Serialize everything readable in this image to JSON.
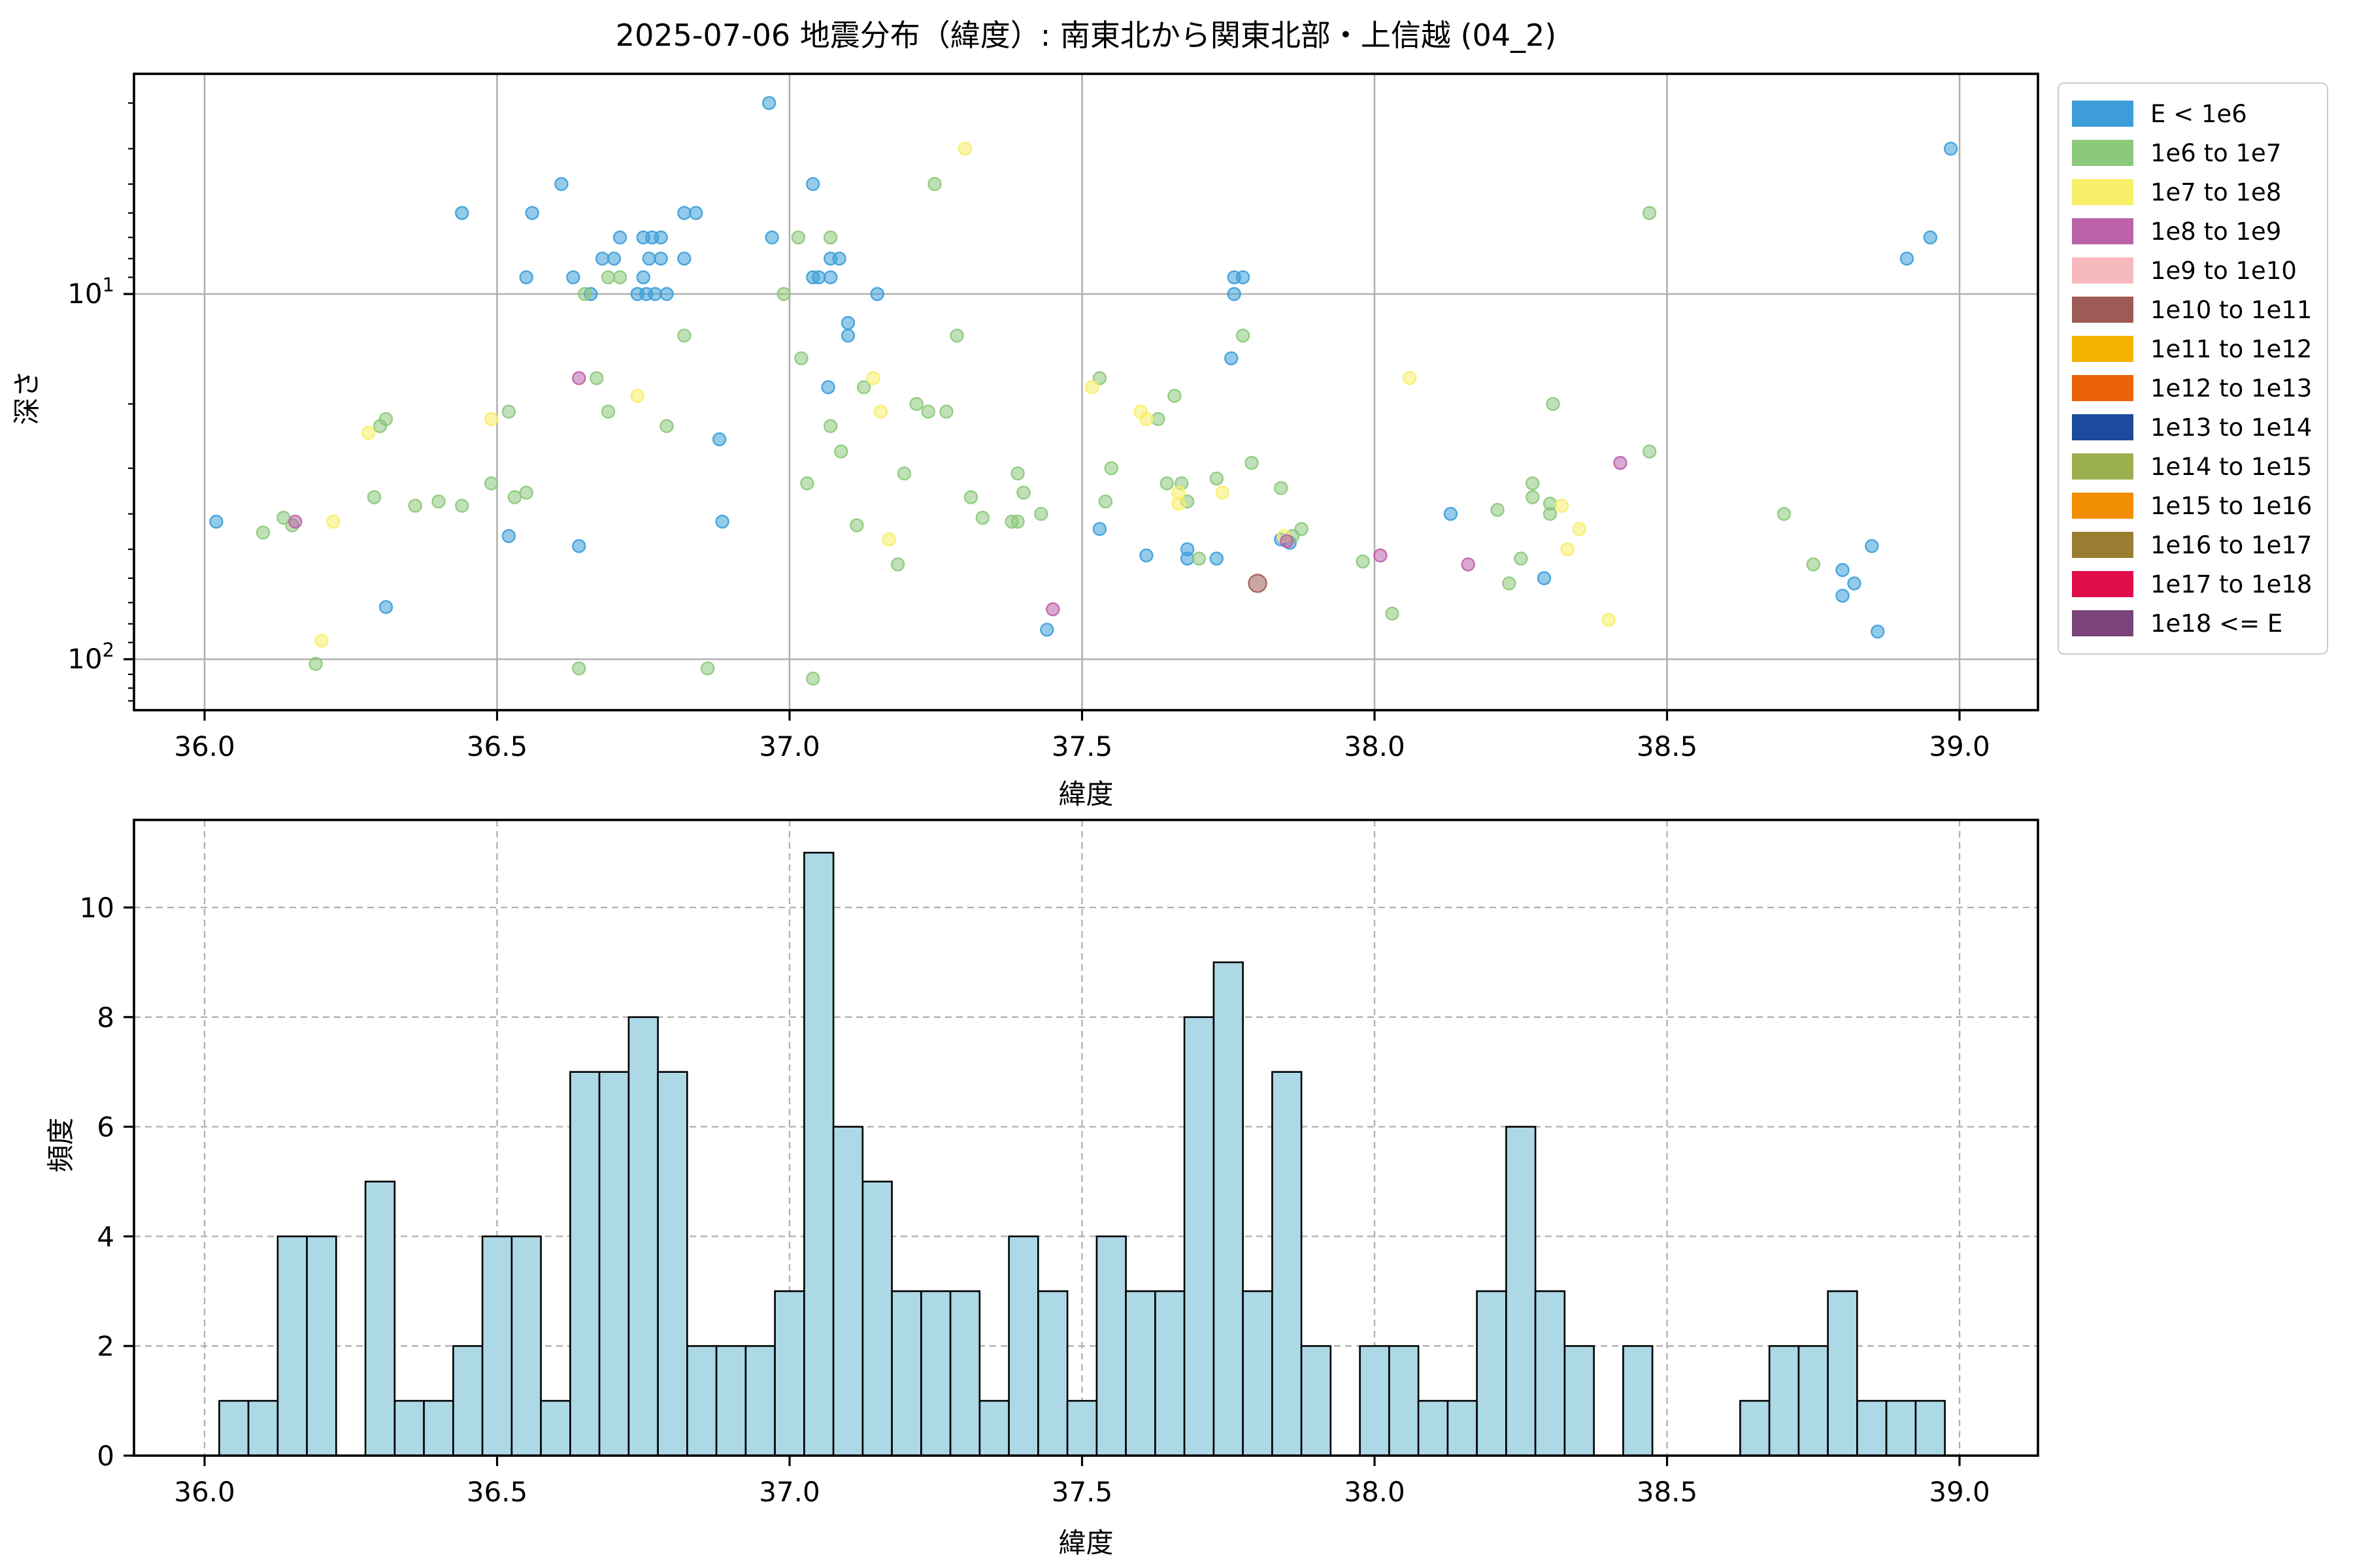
{
  "title": "2025-07-06 地震分布（緯度）: 南東北から関東北部・上信越 (04_2)",
  "style": {
    "background": "#ffffff",
    "grid_color": "#b0b0b0",
    "spine_color": "#000000",
    "tick_label_color": "#000000"
  },
  "legend": {
    "items": [
      {
        "label": "E < 1e6",
        "color": "#3D9ED9"
      },
      {
        "label": "1e6 to 1e7",
        "color": "#8CC97B"
      },
      {
        "label": "1e7 to 1e8",
        "color": "#F7EF67"
      },
      {
        "label": "1e8 to 1e9",
        "color": "#BC62AB"
      },
      {
        "label": "1e9 to 1e10",
        "color": "#F6B9BE"
      },
      {
        "label": "1e10 to 1e11",
        "color": "#9E5B55"
      },
      {
        "label": "1e11 to 1e12",
        "color": "#F5B301"
      },
      {
        "label": "1e12 to 1e13",
        "color": "#EA6309"
      },
      {
        "label": "1e13 to 1e14",
        "color": "#1C4A9C"
      },
      {
        "label": "1e14 to 1e15",
        "color": "#9CAF4E"
      },
      {
        "label": "1e15 to 1e16",
        "color": "#F28E01"
      },
      {
        "label": "1e16 to 1e17",
        "color": "#9A7D31"
      },
      {
        "label": "1e17 to 1e18",
        "color": "#DF0D49"
      },
      {
        "label": "1e18 <= E",
        "color": "#7A4379"
      }
    ]
  },
  "chart_data": [
    {
      "type": "scatter",
      "title": "2025-07-06 地震分布（緯度）: 南東北から関東北部・上信越 (04_2)",
      "xlabel": "緯度",
      "ylabel": "深さ",
      "x_ticks": [
        36.0,
        36.5,
        37.0,
        37.5,
        38.0,
        38.5,
        39.0
      ],
      "x_range": [
        35.88,
        39.13
      ],
      "y_scale": "log-inverted",
      "y_major_ticks": [
        10,
        100
      ],
      "y_minor_ticks": [
        3,
        4,
        5,
        6,
        7,
        8,
        9,
        20,
        30,
        40,
        50,
        60,
        70,
        80,
        90,
        110,
        120,
        130
      ],
      "y_range_depth": [
        2.5,
        138
      ],
      "grid": "solid",
      "legend_position": "outside-right",
      "points_format": "[latitude, depth_km, legend_category_index, big_marker_flag]",
      "points": [
        [
          36.02,
          42,
          0
        ],
        [
          36.31,
          72,
          0
        ],
        [
          36.44,
          6,
          0
        ],
        [
          36.52,
          46,
          0
        ],
        [
          36.55,
          9,
          0
        ],
        [
          36.56,
          6,
          0
        ],
        [
          36.61,
          5,
          0
        ],
        [
          36.63,
          9,
          0
        ],
        [
          36.64,
          49,
          0
        ],
        [
          36.66,
          10,
          0
        ],
        [
          36.68,
          8,
          0
        ],
        [
          36.7,
          8,
          0
        ],
        [
          36.71,
          7,
          0
        ],
        [
          36.74,
          10,
          0
        ],
        [
          36.75,
          7,
          0
        ],
        [
          36.75,
          9,
          0
        ],
        [
          36.755,
          10,
          0
        ],
        [
          36.76,
          8,
          0
        ],
        [
          36.765,
          7,
          0
        ],
        [
          36.77,
          10,
          0
        ],
        [
          36.78,
          7,
          0
        ],
        [
          36.78,
          8,
          0
        ],
        [
          36.79,
          10,
          0
        ],
        [
          36.82,
          6,
          0
        ],
        [
          36.82,
          8,
          0
        ],
        [
          36.84,
          6,
          0
        ],
        [
          36.88,
          25,
          0
        ],
        [
          36.885,
          42,
          0
        ],
        [
          36.965,
          3,
          0
        ],
        [
          36.97,
          7,
          0
        ],
        [
          37.04,
          5,
          0
        ],
        [
          37.04,
          9,
          0
        ],
        [
          37.05,
          9,
          0
        ],
        [
          37.066,
          18,
          0
        ],
        [
          37.07,
          8,
          0
        ],
        [
          37.07,
          9,
          0
        ],
        [
          37.085,
          8,
          0
        ],
        [
          37.1,
          12,
          0
        ],
        [
          37.1,
          13,
          0
        ],
        [
          37.15,
          10,
          0
        ],
        [
          37.44,
          83,
          0
        ],
        [
          37.53,
          44,
          0
        ],
        [
          37.61,
          52,
          0
        ],
        [
          37.68,
          50,
          0
        ],
        [
          37.68,
          53,
          0
        ],
        [
          37.73,
          53,
          0
        ],
        [
          37.755,
          15,
          0
        ],
        [
          37.76,
          9,
          0
        ],
        [
          37.775,
          9,
          0
        ],
        [
          37.76,
          10,
          0
        ],
        [
          37.84,
          47,
          0
        ],
        [
          37.855,
          48,
          0
        ],
        [
          38.13,
          40,
          0
        ],
        [
          38.29,
          60,
          0
        ],
        [
          38.8,
          57,
          0
        ],
        [
          38.8,
          67,
          0
        ],
        [
          38.82,
          62,
          0
        ],
        [
          38.85,
          49,
          0
        ],
        [
          38.86,
          84,
          0
        ],
        [
          38.91,
          8,
          0
        ],
        [
          38.95,
          7,
          0
        ],
        [
          38.985,
          4,
          0
        ],
        [
          36.1,
          45,
          1
        ],
        [
          36.135,
          41,
          1
        ],
        [
          36.15,
          43,
          1
        ],
        [
          36.19,
          103,
          1
        ],
        [
          36.29,
          36,
          1
        ],
        [
          36.3,
          23,
          1
        ],
        [
          36.31,
          22,
          1
        ],
        [
          36.36,
          38,
          1
        ],
        [
          36.4,
          37,
          1
        ],
        [
          36.44,
          38,
          1
        ],
        [
          36.49,
          33,
          1
        ],
        [
          36.52,
          21,
          1
        ],
        [
          36.53,
          36,
          1
        ],
        [
          36.55,
          35,
          1
        ],
        [
          36.64,
          106,
          1
        ],
        [
          36.65,
          10,
          1
        ],
        [
          36.67,
          17,
          1
        ],
        [
          36.69,
          9,
          1
        ],
        [
          36.69,
          21,
          1
        ],
        [
          36.71,
          9,
          1
        ],
        [
          36.79,
          23,
          1
        ],
        [
          36.82,
          13,
          1
        ],
        [
          36.86,
          106,
          1
        ],
        [
          36.99,
          10,
          1
        ],
        [
          37.015,
          7,
          1
        ],
        [
          37.02,
          15,
          1
        ],
        [
          37.03,
          33,
          1
        ],
        [
          37.04,
          113,
          1
        ],
        [
          37.07,
          7,
          1
        ],
        [
          37.07,
          23,
          1
        ],
        [
          37.088,
          27,
          1
        ],
        [
          37.115,
          43,
          1
        ],
        [
          37.127,
          18,
          1
        ],
        [
          37.185,
          55,
          1
        ],
        [
          37.196,
          31,
          1
        ],
        [
          37.217,
          20,
          1
        ],
        [
          37.237,
          21,
          1
        ],
        [
          37.248,
          5,
          1
        ],
        [
          37.268,
          21,
          1
        ],
        [
          37.286,
          13,
          1
        ],
        [
          37.31,
          36,
          1
        ],
        [
          37.33,
          41,
          1
        ],
        [
          37.38,
          42,
          1
        ],
        [
          37.39,
          42,
          1
        ],
        [
          37.39,
          31,
          1
        ],
        [
          37.4,
          35,
          1
        ],
        [
          37.43,
          40,
          1
        ],
        [
          37.53,
          17,
          1
        ],
        [
          37.54,
          37,
          1
        ],
        [
          37.55,
          30,
          1
        ],
        [
          37.63,
          22,
          1
        ],
        [
          37.645,
          33,
          1
        ],
        [
          37.658,
          19,
          1
        ],
        [
          37.67,
          33,
          1
        ],
        [
          37.68,
          37,
          1
        ],
        [
          37.7,
          53,
          1
        ],
        [
          37.73,
          32,
          1
        ],
        [
          37.775,
          13,
          1
        ],
        [
          37.79,
          29,
          1
        ],
        [
          37.84,
          34,
          1
        ],
        [
          37.86,
          46,
          1
        ],
        [
          37.875,
          44,
          1
        ],
        [
          37.98,
          54,
          1
        ],
        [
          38.03,
          75,
          1
        ],
        [
          38.21,
          39,
          1
        ],
        [
          38.23,
          62,
          1
        ],
        [
          38.25,
          53,
          1
        ],
        [
          38.27,
          33,
          1
        ],
        [
          38.27,
          36,
          1
        ],
        [
          38.3,
          37.5,
          1
        ],
        [
          38.3,
          40,
          1
        ],
        [
          38.305,
          20,
          1
        ],
        [
          38.47,
          27,
          1
        ],
        [
          38.47,
          6,
          1
        ],
        [
          38.7,
          40,
          1
        ],
        [
          38.75,
          55,
          1
        ],
        [
          36.2,
          89,
          2
        ],
        [
          36.22,
          42,
          2
        ],
        [
          36.28,
          24,
          2
        ],
        [
          36.49,
          22,
          2
        ],
        [
          36.74,
          19,
          2
        ],
        [
          37.143,
          17,
          2
        ],
        [
          37.156,
          21,
          2
        ],
        [
          37.17,
          47,
          2
        ],
        [
          37.3,
          4,
          2
        ],
        [
          37.517,
          18,
          2
        ],
        [
          37.6,
          21,
          2
        ],
        [
          37.61,
          22,
          2
        ],
        [
          37.665,
          35,
          2
        ],
        [
          37.665,
          37.5,
          2
        ],
        [
          37.74,
          35,
          2
        ],
        [
          37.845,
          46,
          2
        ],
        [
          38.06,
          17,
          2
        ],
        [
          38.32,
          38,
          2
        ],
        [
          38.33,
          50,
          2
        ],
        [
          38.35,
          44,
          2
        ],
        [
          38.4,
          78,
          2
        ],
        [
          36.155,
          42,
          3
        ],
        [
          36.64,
          17,
          3
        ],
        [
          37.45,
          73,
          3
        ],
        [
          37.85,
          47.5,
          3
        ],
        [
          38.01,
          52,
          3
        ],
        [
          38.16,
          55,
          3
        ],
        [
          38.42,
          29,
          3
        ],
        [
          37.8,
          62,
          5,
          1
        ]
      ]
    },
    {
      "type": "bar",
      "subtype": "histogram",
      "xlabel": "緯度",
      "ylabel": "頻度",
      "x_ticks": [
        36.0,
        36.5,
        37.0,
        37.5,
        38.0,
        38.5,
        39.0
      ],
      "y_ticks": [
        0,
        2,
        4,
        6,
        8,
        10
      ],
      "ylim": [
        0,
        11.6
      ],
      "grid": "dashed",
      "bar_color": "#ADD8E6",
      "bar_edge_color": "#000000",
      "bin_width": 0.05,
      "bins_format": "[bin_start_latitude, frequency]",
      "bins": [
        [
          36.025,
          1
        ],
        [
          36.075,
          1
        ],
        [
          36.125,
          4
        ],
        [
          36.175,
          4
        ],
        [
          36.225,
          0
        ],
        [
          36.275,
          5
        ],
        [
          36.325,
          1
        ],
        [
          36.375,
          1
        ],
        [
          36.425,
          2
        ],
        [
          36.475,
          4
        ],
        [
          36.525,
          4
        ],
        [
          36.575,
          1
        ],
        [
          36.625,
          7
        ],
        [
          36.675,
          7
        ],
        [
          36.725,
          8
        ],
        [
          36.775,
          7
        ],
        [
          36.825,
          2
        ],
        [
          36.875,
          2
        ],
        [
          36.925,
          2
        ],
        [
          36.975,
          3
        ],
        [
          37.025,
          11
        ],
        [
          37.075,
          6
        ],
        [
          37.125,
          5
        ],
        [
          37.175,
          3
        ],
        [
          37.225,
          3
        ],
        [
          37.275,
          3
        ],
        [
          37.325,
          1
        ],
        [
          37.375,
          4
        ],
        [
          37.425,
          3
        ],
        [
          37.475,
          1
        ],
        [
          37.525,
          4
        ],
        [
          37.575,
          3
        ],
        [
          37.625,
          3
        ],
        [
          37.675,
          8
        ],
        [
          37.725,
          9
        ],
        [
          37.775,
          3
        ],
        [
          37.825,
          7
        ],
        [
          37.875,
          2
        ],
        [
          37.925,
          0
        ],
        [
          37.975,
          2
        ],
        [
          38.025,
          2
        ],
        [
          38.075,
          1
        ],
        [
          38.125,
          1
        ],
        [
          38.175,
          3
        ],
        [
          38.225,
          6
        ],
        [
          38.275,
          3
        ],
        [
          38.325,
          2
        ],
        [
          38.375,
          0
        ],
        [
          38.425,
          2
        ],
        [
          38.475,
          0
        ],
        [
          38.525,
          0
        ],
        [
          38.575,
          0
        ],
        [
          38.625,
          1
        ],
        [
          38.675,
          2
        ],
        [
          38.725,
          2
        ],
        [
          38.775,
          3
        ],
        [
          38.825,
          1
        ],
        [
          38.875,
          1
        ],
        [
          38.925,
          1
        ]
      ]
    }
  ]
}
